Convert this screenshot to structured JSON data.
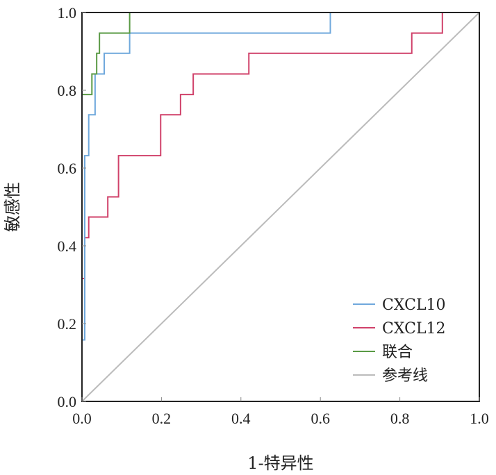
{
  "chart_data": {
    "type": "line",
    "title": "",
    "xlabel": "1-特异性",
    "ylabel": "敏感性",
    "xlim": [
      0,
      1
    ],
    "ylim": [
      0,
      1
    ],
    "xticks": [
      "0.0",
      "0.2",
      "0.4",
      "0.6",
      "0.8",
      "1.0"
    ],
    "yticks": [
      "0.0",
      "0.2",
      "0.4",
      "0.6",
      "0.8",
      "1.0"
    ],
    "legend_position": "bottom-right",
    "series": [
      {
        "name": "CXCL10",
        "color": "#6fa8dc",
        "points": [
          [
            0,
            0.158
          ],
          [
            0.007,
            0.158
          ],
          [
            0.007,
            0.632
          ],
          [
            0.017,
            0.632
          ],
          [
            0.017,
            0.737
          ],
          [
            0.033,
            0.737
          ],
          [
            0.033,
            0.842
          ],
          [
            0.056,
            0.842
          ],
          [
            0.056,
            0.895
          ],
          [
            0.12,
            0.895
          ],
          [
            0.12,
            0.947
          ],
          [
            0.625,
            0.947
          ],
          [
            0.625,
            1
          ],
          [
            1,
            1
          ]
        ]
      },
      {
        "name": "CXCL12",
        "color": "#d0416a",
        "points": [
          [
            0,
            0.316
          ],
          [
            0.007,
            0.316
          ],
          [
            0.007,
            0.421
          ],
          [
            0.017,
            0.421
          ],
          [
            0.017,
            0.474
          ],
          [
            0.065,
            0.474
          ],
          [
            0.065,
            0.526
          ],
          [
            0.092,
            0.526
          ],
          [
            0.092,
            0.632
          ],
          [
            0.198,
            0.632
          ],
          [
            0.198,
            0.737
          ],
          [
            0.248,
            0.737
          ],
          [
            0.248,
            0.789
          ],
          [
            0.28,
            0.789
          ],
          [
            0.28,
            0.842
          ],
          [
            0.42,
            0.842
          ],
          [
            0.42,
            0.895
          ],
          [
            0.83,
            0.895
          ],
          [
            0.83,
            0.947
          ],
          [
            0.907,
            0.947
          ],
          [
            0.907,
            1
          ],
          [
            1,
            1
          ]
        ]
      },
      {
        "name": "联合",
        "color": "#5a9a45",
        "points": [
          [
            0,
            0.789
          ],
          [
            0.025,
            0.789
          ],
          [
            0.025,
            0.842
          ],
          [
            0.037,
            0.842
          ],
          [
            0.037,
            0.895
          ],
          [
            0.044,
            0.895
          ],
          [
            0.044,
            0.947
          ],
          [
            0.12,
            0.947
          ],
          [
            0.12,
            1
          ],
          [
            1,
            1
          ]
        ]
      },
      {
        "name": "参考线",
        "color": "#bbbbbb",
        "points": [
          [
            0,
            0
          ],
          [
            1,
            1
          ]
        ]
      }
    ]
  }
}
